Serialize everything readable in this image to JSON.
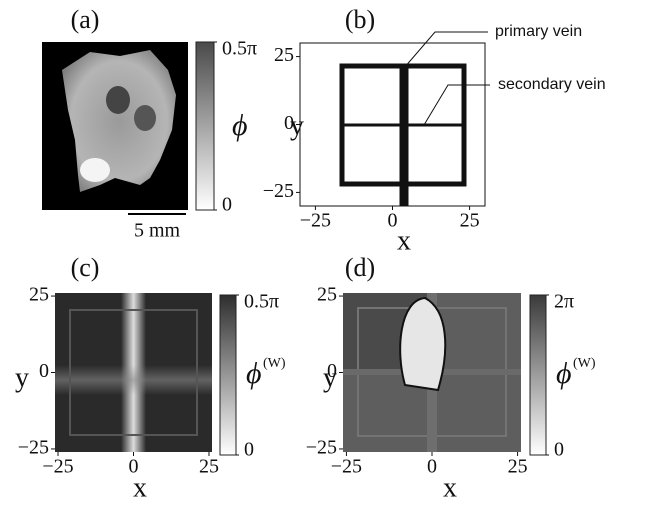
{
  "panels": [
    {
      "label": "(a)",
      "scale_bar": "5 mm",
      "colorbar": {
        "lim": [
          0,
          0.5
        ],
        "ticks": [
          {
            "value": 0.5,
            "label": "0.5π"
          },
          0
        ],
        "symbol": "ϕ"
      }
    },
    {
      "label": "(b)",
      "xlabel": "x",
      "ylabel": "y",
      "xlim": [
        -30,
        30
      ],
      "ylim": [
        -30,
        30
      ],
      "xticks": [
        {
          "value": -25,
          "label": "−25"
        },
        0,
        25
      ],
      "yticks": [
        {
          "value": -25,
          "label": "−25"
        },
        0,
        25
      ],
      "annotations": [
        "primary vein",
        "secondary vein"
      ]
    },
    {
      "label": "(c)",
      "xlabel": "x",
      "ylabel": "y",
      "xlim": [
        -26,
        26
      ],
      "ylim": [
        -26,
        26
      ],
      "xticks": [
        {
          "value": -25,
          "label": "−25"
        },
        0,
        25
      ],
      "yticks": [
        {
          "value": -25,
          "label": "−25"
        },
        0,
        25
      ],
      "colorbar": {
        "lim": [
          0,
          0.5
        ],
        "ticks": [
          {
            "value": 0.5,
            "label": "0.5π"
          },
          0
        ],
        "symbol": "ϕ",
        "superscript": "(W)"
      }
    },
    {
      "label": "(d)",
      "xlabel": "x",
      "ylabel": "y",
      "xlim": [
        -26,
        26
      ],
      "ylim": [
        -26,
        26
      ],
      "xticks": [
        {
          "value": -25,
          "label": "−25"
        },
        0,
        25
      ],
      "yticks": [
        {
          "value": -25,
          "label": "−25"
        },
        0,
        25
      ],
      "colorbar": {
        "lim": [
          0,
          2
        ],
        "ticks": [
          {
            "value": 2,
            "label": "2π"
          },
          0
        ],
        "symbol": "ϕ",
        "superscript": "(W)"
      }
    }
  ]
}
